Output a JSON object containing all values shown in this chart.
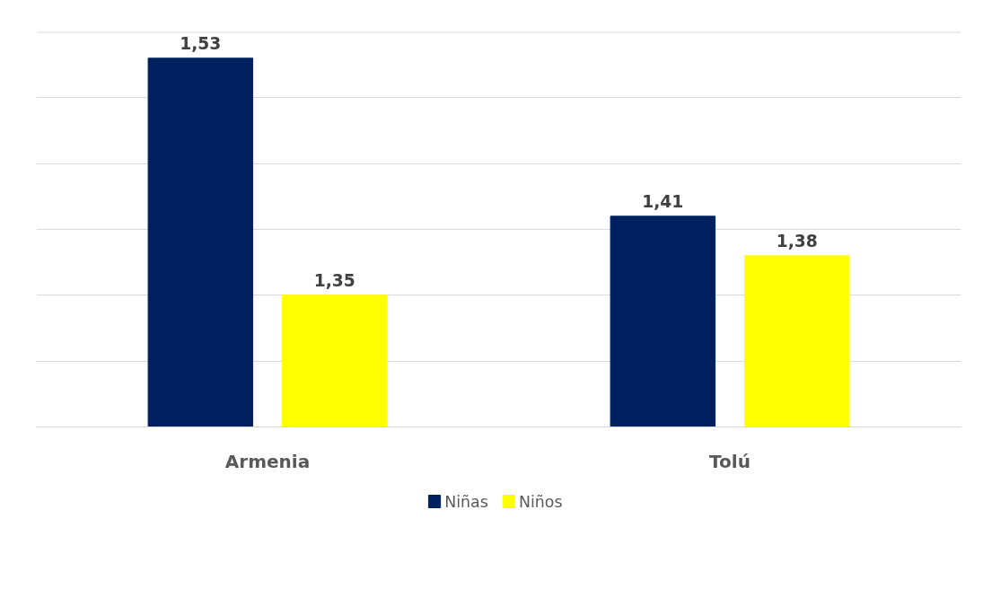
{
  "chart_data": {
    "type": "bar",
    "categories": [
      "Armenia",
      "Tolú"
    ],
    "series": [
      {
        "name": "Niñas",
        "color": "#002060",
        "values": [
          1.53,
          1.41
        ],
        "value_labels": [
          "1,53",
          "1,41"
        ]
      },
      {
        "name": "Niños",
        "color": "#ffff00",
        "values": [
          1.35,
          1.38
        ],
        "value_labels": [
          "1,35",
          "1,38"
        ]
      }
    ],
    "ylim": [
      1.25,
      1.55
    ],
    "grid": "y",
    "tick_labels": "x",
    "legend": "bottom"
  }
}
